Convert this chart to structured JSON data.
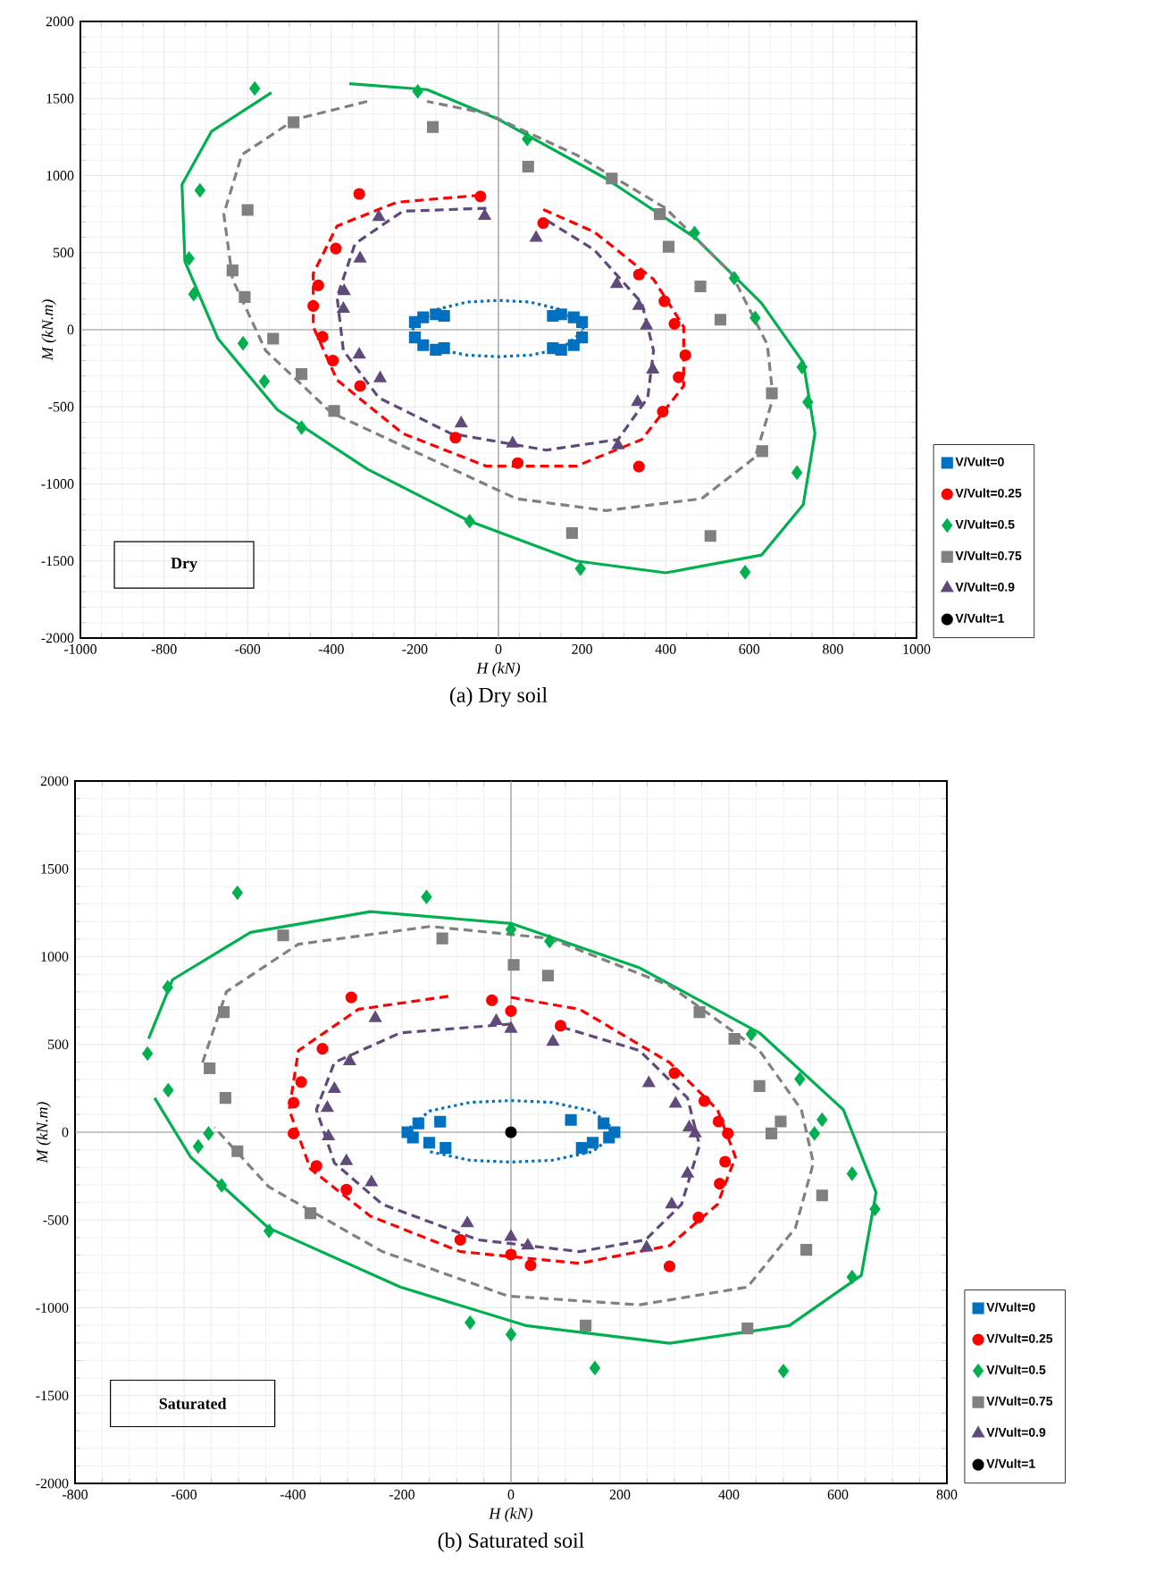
{
  "chart_data": [
    {
      "type": "scatter",
      "title": "(a) Dry soil",
      "xlabel": "H (kN)",
      "ylabel": "M (kN.m)",
      "annotations": [
        "Dry"
      ],
      "xlim": [
        -1000,
        1000
      ],
      "ylim": [
        -2000,
        2000
      ],
      "xticks": [
        -1000,
        -800,
        -600,
        -400,
        -200,
        0,
        200,
        400,
        600,
        800,
        1000
      ],
      "yticks": [
        -2000,
        -1500,
        -1000,
        -500,
        0,
        500,
        1000,
        1500,
        2000
      ],
      "grid": true,
      "legend": "right",
      "series": [
        {
          "type": "line",
          "color": "#0070C0",
          "line_style": "dotted",
          "marker": "none",
          "x": [
            -207,
            -150,
            -75,
            0,
            75,
            150,
            207,
            150,
            75,
            0,
            -75,
            -150
          ],
          "values": [
            0,
            130,
            180,
            190,
            180,
            130,
            0,
            -125,
            -165,
            -175,
            -165,
            -125
          ]
        },
        {
          "type": "line",
          "color": "#FF0000",
          "line_style": "dashed",
          "marker": "none",
          "x": [
            -43,
            -243,
            -386,
            -443,
            -443,
            -386,
            -229,
            -29,
            186,
            343,
            443,
            443,
            371,
            229,
            100
          ],
          "values": [
            873,
            827,
            673,
            365,
            19,
            -327,
            -673,
            -885,
            -885,
            -712,
            -365,
            19,
            327,
            635,
            788
          ]
        },
        {
          "type": "line",
          "color": "#00B050",
          "line_style": "solid",
          "marker": "none",
          "x": [
            -357,
            -171,
            0,
            257,
            471,
            629,
            729,
            757,
            729,
            629,
            400,
            186,
            -69,
            -314,
            -529,
            -671,
            -750,
            -757,
            -686,
            -543
          ],
          "values": [
            1596,
            1558,
            1365,
            981,
            596,
            173,
            -212,
            -673,
            -1135,
            -1462,
            -1577,
            -1500,
            -1242,
            -904,
            -519,
            -58,
            442,
            942,
            1288,
            1538
          ]
        },
        {
          "type": "line",
          "color": "#808080",
          "line_style": "dashed",
          "marker": "none",
          "x": [
            -314,
            -486,
            -614,
            -657,
            -636,
            -557,
            -400,
            -171,
            43,
            257,
            486,
            614,
            657,
            643,
            557,
            400,
            186,
            -29,
            -171
          ],
          "values": [
            1481,
            1365,
            1135,
            750,
            327,
            -135,
            -538,
            -827,
            -1096,
            -1173,
            -1096,
            -827,
            -442,
            -96,
            365,
            788,
            1135,
            1404,
            1481
          ]
        },
        {
          "type": "line",
          "color": "#604A7B",
          "line_style": "dashed",
          "marker": "none",
          "x": [
            -29,
            -229,
            -343,
            -386,
            -371,
            -286,
            -114,
            114,
            286,
            357,
            371,
            343,
            229,
            114
          ],
          "values": [
            788,
            769,
            558,
            212,
            -135,
            -442,
            -673,
            -781,
            -712,
            -442,
            -135,
            173,
            519,
            712
          ]
        },
        {
          "name": "V/Vult=0",
          "type": "scatter",
          "color": "#0070C0",
          "marker": "square",
          "x": [
            -200,
            -200,
            -180,
            -180,
            -150,
            -150,
            -130,
            -130,
            200,
            200,
            180,
            180,
            150,
            150,
            130,
            130
          ],
          "values": [
            50,
            -50,
            80,
            -100,
            100,
            -130,
            90,
            -120,
            50,
            -50,
            80,
            -100,
            100,
            -130,
            90,
            -120
          ]
        },
        {
          "name": "V/Vult=0.25",
          "type": "scatter",
          "color": "#FF0000",
          "marker": "circle",
          "x": [
            -333,
            -43,
            107,
            336,
            397,
            421,
            447,
            431,
            393,
            336,
            46,
            -103,
            -331,
            -396,
            -421,
            -443,
            -431,
            -389
          ],
          "values": [
            881,
            865,
            692,
            358,
            185,
            38,
            -165,
            -308,
            -531,
            -888,
            -865,
            -700,
            -365,
            -200,
            -46,
            154,
            288,
            527
          ]
        },
        {
          "name": "V/Vult=0.5",
          "type": "scatter",
          "color": "#00B050",
          "marker": "diamond",
          "x": [
            -583,
            -193,
            69,
            469,
            564,
            614,
            726,
            740,
            714,
            590,
            196,
            -69,
            -471,
            -560,
            -611,
            -729,
            -740,
            -714
          ],
          "values": [
            1565,
            1546,
            1238,
            627,
            335,
            77,
            -242,
            -469,
            -927,
            -1573,
            -1550,
            -1242,
            -635,
            -335,
            -88,
            231,
            462,
            904
          ]
        },
        {
          "name": "V/Vult=0.75",
          "type": "scatter",
          "color": "#808080",
          "marker": "square",
          "x": [
            -490,
            -157,
            71,
            271,
            386,
            407,
            483,
            531,
            654,
            631,
            507,
            176,
            -393,
            -471,
            -539,
            -607,
            -636,
            -600
          ],
          "values": [
            1346,
            1315,
            1058,
            981,
            750,
            538,
            281,
            65,
            -412,
            -788,
            -1338,
            -1319,
            -527,
            -288,
            -58,
            212,
            385,
            777
          ]
        },
        {
          "name": "V/Vult=0.9",
          "type": "scatter",
          "color": "#604A7B",
          "marker": "triangle",
          "x": [
            -286,
            -33,
            90,
            283,
            336,
            354,
            369,
            333,
            286,
            34,
            -89,
            -283,
            -333,
            -371,
            -369,
            -331
          ],
          "values": [
            731,
            738,
            596,
            296,
            154,
            27,
            -258,
            -469,
            -750,
            -738,
            -608,
            -315,
            -162,
            135,
            250,
            462
          ]
        },
        {
          "name": "V/Vult=1",
          "type": "scatter",
          "color": "#000000",
          "marker": "circle"
        }
      ]
    },
    {
      "type": "scatter",
      "title": "(b) Saturated soil",
      "xlabel": "H (kN)",
      "ylabel": "M (kN.m)",
      "annotations": [
        "Saturated"
      ],
      "xlim": [
        -800,
        800
      ],
      "ylim": [
        -2000,
        2000
      ],
      "xticks": [
        -800,
        -600,
        -400,
        -200,
        0,
        200,
        400,
        600,
        800
      ],
      "yticks": [
        -2000,
        -1500,
        -1000,
        -500,
        0,
        500,
        1000,
        1500,
        2000
      ],
      "grid": true,
      "legend": "right",
      "series": [
        {
          "type": "line",
          "color": "#0070C0",
          "line_style": "dotted",
          "marker": "none",
          "x": [
            -195,
            -150,
            -75,
            0,
            75,
            150,
            195,
            150,
            75,
            0,
            -75,
            -150
          ],
          "values": [
            0,
            120,
            170,
            180,
            170,
            120,
            0,
            -110,
            -160,
            -170,
            -160,
            -110
          ]
        },
        {
          "type": "line",
          "color": "#FF0000",
          "line_style": "dashed",
          "marker": "none",
          "x": [
            -115,
            -280,
            -390,
            -407,
            -368,
            -258,
            -93,
            126,
            291,
            379,
            412,
            379,
            291,
            126,
            0
          ],
          "values": [
            774,
            700,
            465,
            128,
            -209,
            -478,
            -680,
            -747,
            -646,
            -411,
            -141,
            128,
            397,
            700,
            768
          ]
        },
        {
          "type": "line",
          "color": "#00B050",
          "line_style": "solid",
          "marker": "none",
          "x": [
            -665,
            -621,
            -478,
            -258,
            0,
            236,
            456,
            610,
            670,
            643,
            511,
            291,
            27,
            -203,
            -445,
            -588,
            -654
          ],
          "values": [
            532,
            869,
            1138,
            1256,
            1189,
            936,
            566,
            128,
            -343,
            -815,
            -1101,
            -1202,
            -1101,
            -882,
            -545,
            -141,
            195
          ]
        },
        {
          "type": "line",
          "color": "#808080",
          "line_style": "dashed",
          "marker": "none",
          "x": [
            -566,
            -522,
            -390,
            -148,
            71,
            291,
            456,
            533,
            555,
            522,
            434,
            236,
            -5,
            -236,
            -445,
            -544
          ],
          "values": [
            397,
            801,
            1071,
            1172,
            1104,
            835,
            465,
            128,
            -175,
            -545,
            -882,
            -983,
            -933,
            -680,
            -310,
            27
          ]
        },
        {
          "type": "line",
          "color": "#604A7B",
          "line_style": "dashed",
          "marker": "none",
          "x": [
            0,
            -203,
            -324,
            -357,
            -324,
            -236,
            -60,
            126,
            247,
            313,
            346,
            324,
            236,
            93
          ],
          "values": [
            616,
            566,
            397,
            128,
            -175,
            -411,
            -613,
            -680,
            -613,
            -411,
            -74,
            195,
            465,
            599
          ]
        },
        {
          "name": "V/Vult=0",
          "type": "scatter",
          "color": "#0070C0",
          "marker": "square",
          "x": [
            -190,
            -180,
            -170,
            -150,
            -130,
            -120,
            190,
            180,
            170,
            150,
            110,
            130
          ],
          "values": [
            0,
            -30,
            50,
            -60,
            60,
            -90,
            0,
            -30,
            50,
            -60,
            70,
            -90
          ]
        },
        {
          "name": "V/Vult=0.25",
          "type": "scatter",
          "color": "#FF0000",
          "marker": "circle",
          "x": [
            -293,
            -35,
            0,
            91,
            300,
            355,
            381,
            398,
            393,
            383,
            344,
            291,
            36,
            0,
            -93,
            -302,
            -357,
            -399,
            -399,
            -385,
            -346
          ],
          "values": [
            768,
            751,
            690,
            606,
            337,
            178,
            61,
            -7,
            -168,
            -293,
            -485,
            -764,
            -758,
            -697,
            -613,
            -327,
            -192,
            -7,
            168,
            286,
            475
          ]
        },
        {
          "name": "V/Vult=0.5",
          "type": "scatter",
          "color": "#00B050",
          "marker": "diamond",
          "x": [
            -502,
            -155,
            0,
            71,
            441,
            530,
            571,
            557,
            626,
            668,
            626,
            500,
            154,
            0,
            -75,
            -444,
            -531,
            -574,
            -555,
            -629,
            -667,
            -630
          ],
          "values": [
            1364,
            1340,
            1155,
            1088,
            559,
            303,
            71,
            -7,
            -236,
            -438,
            -825,
            -1360,
            -1343,
            -1152,
            -1084,
            -562,
            -303,
            -81,
            -7,
            239,
            448,
            825
          ]
        },
        {
          "name": "V/Vult=0.75",
          "type": "scatter",
          "color": "#808080",
          "marker": "square",
          "x": [
            -418,
            -126,
            5,
            68,
            346,
            410,
            456,
            495,
            478,
            571,
            542,
            434,
            137,
            -368,
            -502,
            -524,
            -553,
            -527
          ],
          "values": [
            1121,
            1104,
            953,
            892,
            684,
            532,
            263,
            61,
            -7,
            -360,
            -670,
            -1118,
            -1101,
            -461,
            -108,
            195,
            364,
            684
          ]
        },
        {
          "name": "V/Vult=0.9",
          "type": "scatter",
          "color": "#604A7B",
          "marker": "triangle",
          "x": [
            -249,
            -27,
            0,
            77,
            253,
            302,
            327,
            338,
            324,
            295,
            249,
            31,
            0,
            -80,
            -256,
            -302,
            -335,
            -337,
            -324,
            -296
          ],
          "values": [
            650,
            633,
            589,
            515,
            279,
            162,
            27,
            -7,
            -236,
            -411,
            -657,
            -646,
            -596,
            -519,
            -286,
            -165,
            -24,
            138,
            246,
            404
          ]
        },
        {
          "name": "V/Vult=1",
          "type": "scatter",
          "color": "#000000",
          "marker": "circle",
          "x": [
            0
          ],
          "values": [
            0
          ]
        }
      ]
    }
  ]
}
